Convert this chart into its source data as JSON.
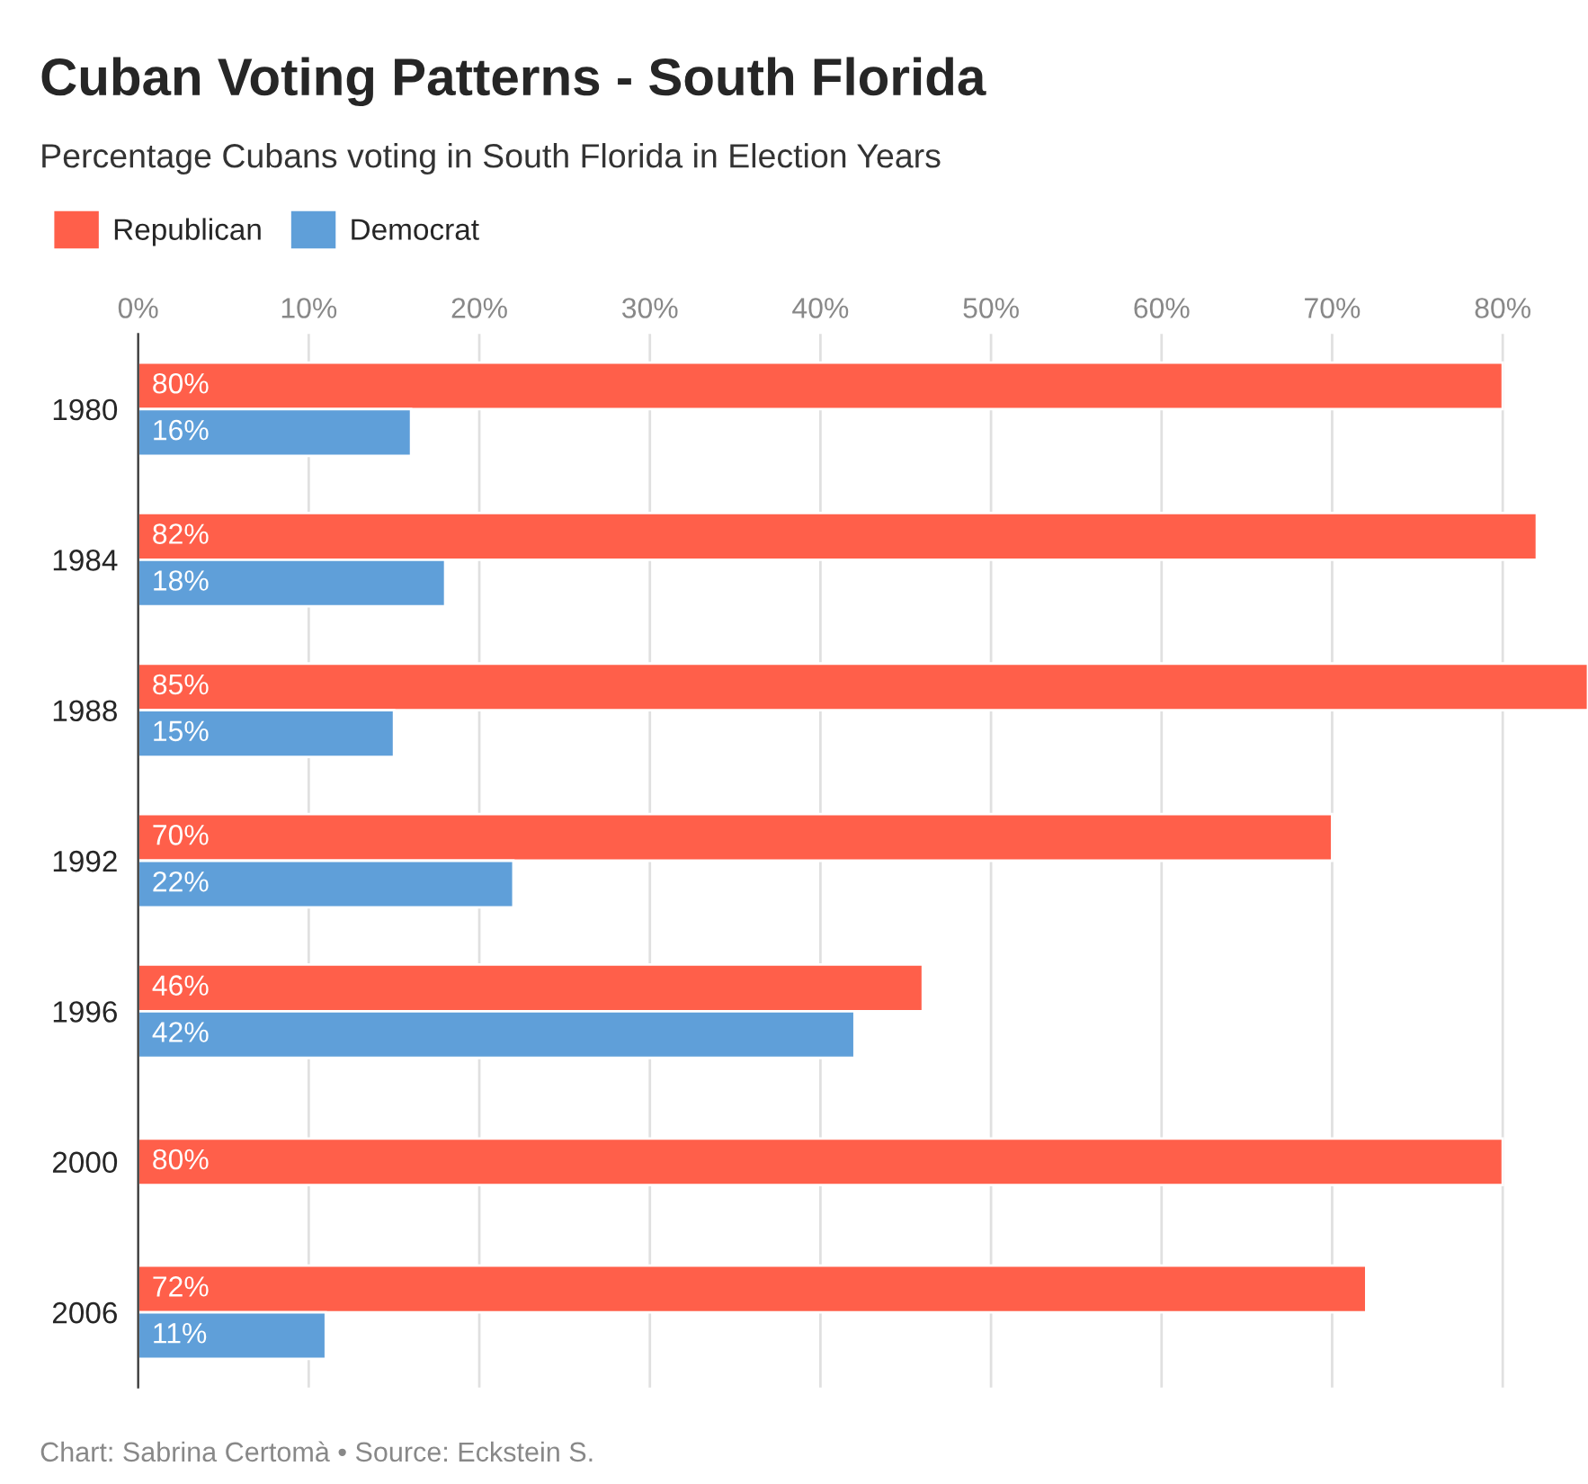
{
  "chart_data": {
    "type": "bar",
    "orientation": "horizontal",
    "title": "Cuban Voting Patterns - South Florida",
    "subtitle": "Percentage Cubans voting in South Florida in Election Years",
    "categories": [
      "1980",
      "1984",
      "1988",
      "1992",
      "1996",
      "2000",
      "2006"
    ],
    "series": [
      {
        "name": "Republican",
        "color": "#ff5f4a",
        "values": [
          80,
          82,
          85,
          70,
          46,
          80,
          72
        ],
        "value_labels": [
          "80%",
          "82%",
          "85%",
          "70%",
          "46%",
          "80%",
          "72%"
        ]
      },
      {
        "name": "Democrat",
        "color": "#5f9fd9",
        "values": [
          16,
          18,
          15,
          22,
          42,
          null,
          11
        ],
        "value_labels": [
          "16%",
          "18%",
          "15%",
          "22%",
          "42%",
          null,
          "11%"
        ]
      }
    ],
    "xlim": [
      0,
      85
    ],
    "xticks": [
      {
        "value": 0,
        "label": "0%"
      },
      {
        "value": 10,
        "label": "10%"
      },
      {
        "value": 20,
        "label": "20%"
      },
      {
        "value": 30,
        "label": "30%"
      },
      {
        "value": 40,
        "label": "40%"
      },
      {
        "value": 50,
        "label": "50%"
      },
      {
        "value": 60,
        "label": "60%"
      },
      {
        "value": 70,
        "label": "70%"
      },
      {
        "value": 80,
        "label": "80%"
      }
    ],
    "grid": "x",
    "legend": "top left",
    "annotations": [
      "Chart: Sabrina Certomà • Source: Eckstein S."
    ]
  }
}
